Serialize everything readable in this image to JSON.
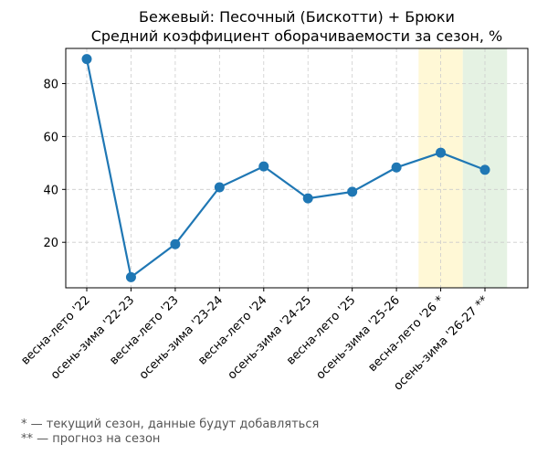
{
  "chart_data": {
    "type": "line",
    "title_line1": "Бежевый: Песочный (Бискотти) + Брюки",
    "title_line2": "Средний коэффициент оборачиваемости за сезон, %",
    "xlabel": "",
    "ylabel": "",
    "categories": [
      "весна-лето '22",
      "осень-зима '22-23",
      "весна-лето '23",
      "осень-зима '23-24",
      "весна-лето '24",
      "осень-зима '24-25",
      "весна-лето '25",
      "осень-зима '25-26",
      "весна-лето '26 *",
      "осень-зима '26-27 **"
    ],
    "series": [
      {
        "values": [
          89.3,
          6.8,
          19.3,
          40.8,
          48.7,
          36.6,
          39.1,
          48.3,
          53.9,
          47.4
        ],
        "color": "#1f77b4"
      }
    ],
    "yticks": [
      20,
      40,
      60,
      80
    ],
    "ylim": [
      2.8,
      93.3
    ],
    "grid": true,
    "highlights": [
      {
        "category_index": 8,
        "color": "#fff8d6"
      },
      {
        "category_index": 9,
        "color": "#e5f2e3"
      }
    ]
  },
  "footnotes": {
    "current": "* — текущий сезон, данные будут добавляться",
    "forecast": "** — прогноз на сезон"
  }
}
